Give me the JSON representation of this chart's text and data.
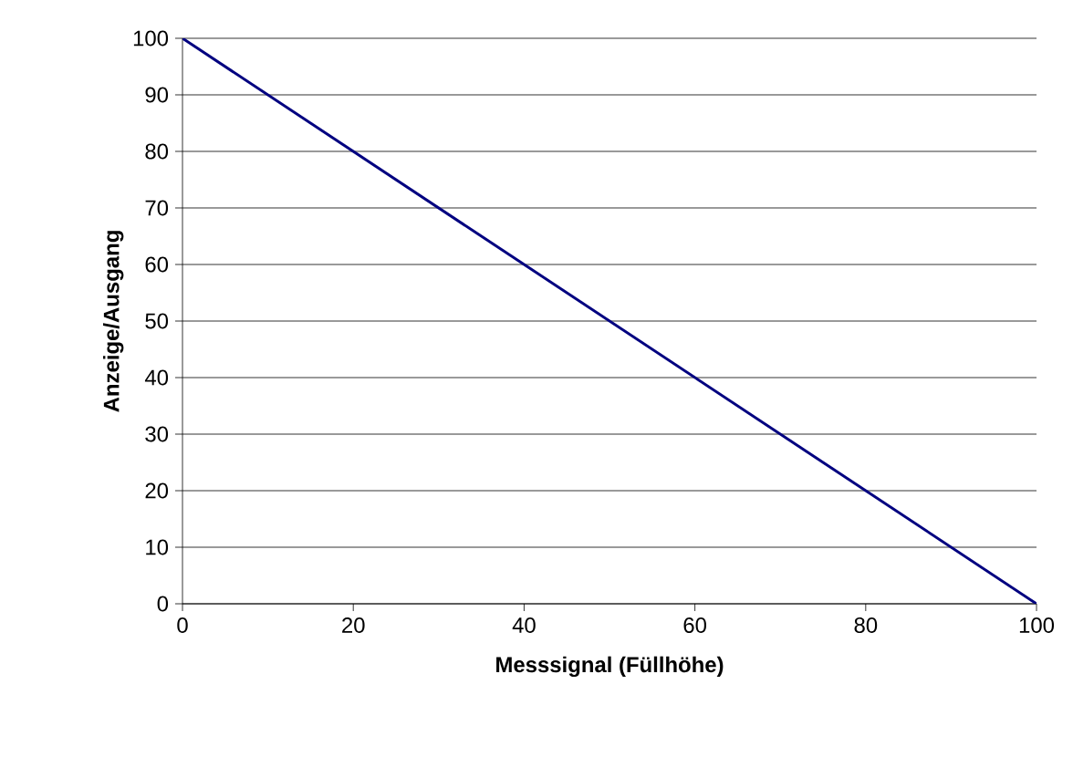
{
  "chart_data": {
    "type": "line",
    "xlabel": "Messsignal (Füllhöhe)",
    "ylabel": "Anzeige/Ausgang",
    "x": [
      0,
      100
    ],
    "series": [
      {
        "color": "#000080",
        "values": [
          100,
          0
        ]
      }
    ],
    "xlim": [
      0,
      100
    ],
    "ylim": [
      0,
      100
    ],
    "xticks": [
      0,
      20,
      40,
      60,
      80,
      100
    ],
    "yticks": [
      0,
      10,
      20,
      30,
      40,
      50,
      60,
      70,
      80,
      90,
      100
    ],
    "grid": "y",
    "line_style": "solid",
    "marker": "none"
  }
}
